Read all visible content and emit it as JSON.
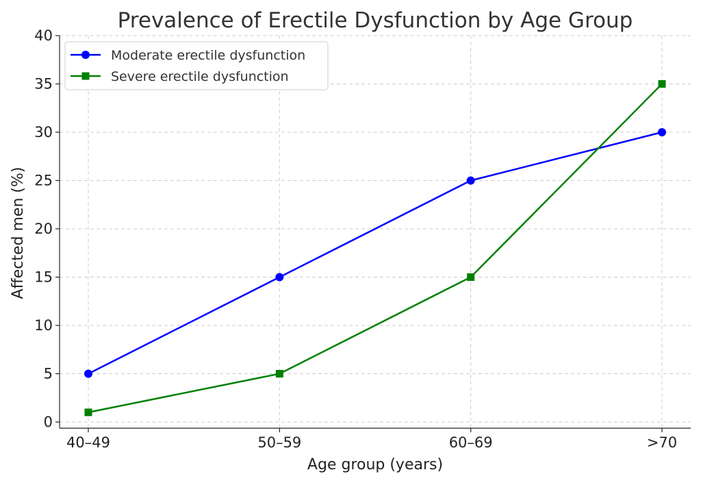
{
  "chart_data": {
    "type": "line",
    "title": "Prevalence of Erectile Dysfunction by Age Group",
    "xlabel": "Age group (years)",
    "ylabel": "Affected men (%)",
    "categories": [
      "40–49",
      "50–59",
      "60–69",
      ">70"
    ],
    "ylim": [
      0,
      40
    ],
    "yticks": [
      0,
      5,
      10,
      15,
      20,
      25,
      30,
      35,
      40
    ],
    "grid": true,
    "legend_position": "top-left",
    "series": [
      {
        "name": "Moderate erectile dysfunction",
        "values": [
          5,
          15,
          25,
          30
        ],
        "color": "#0000ff",
        "marker": "circle"
      },
      {
        "name": "Severe erectile dysfunction",
        "values": [
          1,
          5,
          15,
          35
        ],
        "color": "#008000",
        "marker": "square"
      }
    ]
  }
}
